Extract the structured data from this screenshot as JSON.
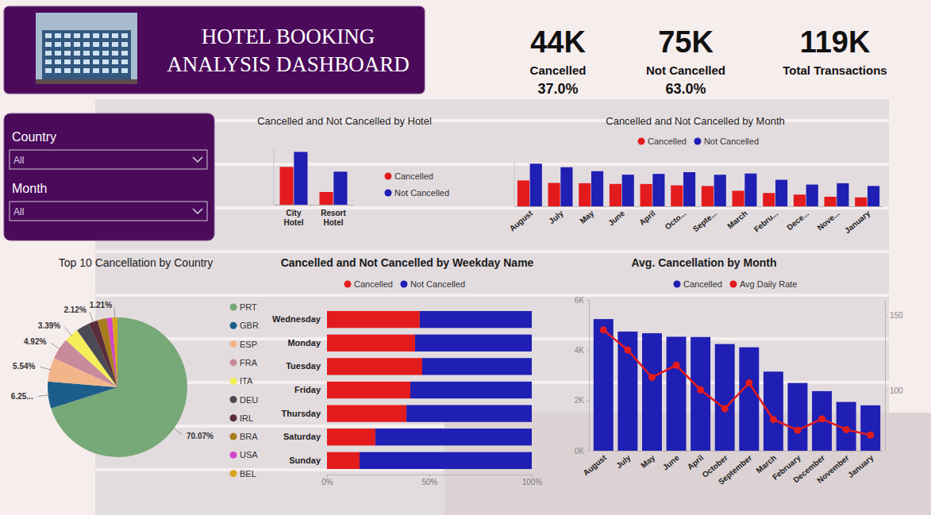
{
  "header": {
    "title": [
      "HOTEL BOOKING",
      "ANALYSIS DASHBOARD"
    ]
  },
  "kpis": [
    {
      "value": "44K",
      "label": "Cancelled",
      "share": "37.0%"
    },
    {
      "value": "75K",
      "label": "Not Cancelled",
      "share": "63.0%"
    },
    {
      "value": "119K",
      "label": "Total Transactions"
    }
  ],
  "filters": [
    {
      "label": "Country",
      "value": "All"
    },
    {
      "label": "Month",
      "value": "All"
    }
  ],
  "chart_data": [
    {
      "type": "bar",
      "title": "Cancelled and Not Cancelled by Hotel",
      "categories": [
        "City Hotel",
        "Resort Hotel"
      ],
      "series": [
        {
          "name": "Cancelled",
          "color": "#e31b1d",
          "values": [
            33102,
            11122
          ]
        },
        {
          "name": "Not Cancelled",
          "color": "#1f1fb4",
          "values": [
            46228,
            28938
          ]
        }
      ],
      "ylim": [
        0,
        50000
      ],
      "tick_labels": "x",
      "legend": "right"
    },
    {
      "type": "bar",
      "title": "Cancelled and Not Cancelled by Month",
      "categories": [
        "August",
        "July",
        "May",
        "June",
        "April",
        "Octo...",
        "Septe...",
        "March",
        "Febru...",
        "Dece...",
        "Nove...",
        "January"
      ],
      "series": [
        {
          "name": "Cancelled",
          "color": "#e31b1d",
          "values": [
            5239,
            4742,
            4677,
            4535,
            4524,
            4246,
            4116,
            3149,
            2696,
            2371,
            1941,
            1807
          ]
        },
        {
          "name": "Not Cancelled",
          "color": "#1f1fb4",
          "values": [
            8638,
            7919,
            7114,
            6404,
            6565,
            6914,
            6392,
            6645,
            5372,
            4409,
            4672,
            4122
          ]
        }
      ],
      "ylim": [
        0,
        9000
      ],
      "tick_labels": "x",
      "legend": "top"
    },
    {
      "type": "bar",
      "title": "Cancelled and Not Cancelled by Weekday Name",
      "orientation": "horizontal",
      "stacked": true,
      "categories": [
        "Wednesday",
        "Monday",
        "Tuesday",
        "Friday",
        "Thursday",
        "Saturday",
        "Sunday"
      ],
      "series": [
        {
          "name": "Cancelled",
          "color": "#e31b1d",
          "values": [
            45.3,
            43.0,
            46.5,
            40.7,
            38.8,
            23.6,
            15.9
          ]
        },
        {
          "name": "Not Cancelled",
          "color": "#1f1fb4",
          "values": [
            54.7,
            57.0,
            53.5,
            59.3,
            61.2,
            76.4,
            84.1
          ]
        }
      ],
      "xlim": [
        0,
        100
      ],
      "xticks": [
        {
          "value": 0,
          "label": "0%"
        },
        {
          "value": 50,
          "label": "50%"
        },
        {
          "value": 100,
          "label": "100%"
        }
      ],
      "legend": "top"
    },
    {
      "type": "pie",
      "title": "Top 10 Cancellation by Country",
      "categories": [
        "PRT",
        "GBR",
        "ESP",
        "FRA",
        "ITA",
        "DEU",
        "IRL",
        "BRA",
        "USA",
        "BEL"
      ],
      "values": [
        70.07,
        6.25,
        5.54,
        4.92,
        3.39,
        3.1,
        2.12,
        2.11,
        1.28,
        1.21
      ],
      "value_labels": [
        "70.07%",
        "6.25...",
        "5.54%",
        "4.92%",
        "3.39%",
        null,
        "2.12%",
        null,
        null,
        "1.21%"
      ],
      "colors": [
        "#77a877",
        "#1d5d8c",
        "#f2b58a",
        "#c98b9b",
        "#f3ee5a",
        "#4a4a55",
        "#5a2d3c",
        "#a87d1e",
        "#d346c8",
        "#d6a51c"
      ],
      "data_labels": true,
      "legend": "right"
    },
    {
      "type": "bar",
      "title": "Avg. Cancellation by Month",
      "categories": [
        "August",
        "July",
        "May",
        "June",
        "April",
        "October",
        "September",
        "March",
        "February",
        "December",
        "November",
        "January"
      ],
      "series": [
        {
          "name": "Cancelled",
          "type": "bar",
          "color": "#1f1fb4",
          "values": [
            5239,
            4742,
            4677,
            4535,
            4524,
            4246,
            4116,
            3149,
            2696,
            2371,
            1941,
            1807
          ]
        },
        {
          "name": "Avg Daily Rate",
          "type": "line",
          "color": "#e31b1d",
          "marker": "circle",
          "axis": "y2",
          "values": [
            140.1,
            126.8,
            108.7,
            116.7,
            100.4,
            87.9,
            105.0,
            80.7,
            73.6,
            81.1,
            74.0,
            70.4
          ]
        }
      ],
      "ylim": [
        0,
        6000
      ],
      "yticks": [
        {
          "value": 0,
          "label": "0K"
        },
        {
          "value": 2000,
          "label": "2K"
        },
        {
          "value": 4000,
          "label": "4K"
        },
        {
          "value": 6000,
          "label": "6K"
        }
      ],
      "y2lim": [
        60,
        160
      ],
      "y2ticks": [
        100,
        150
      ],
      "legend": "top"
    }
  ]
}
